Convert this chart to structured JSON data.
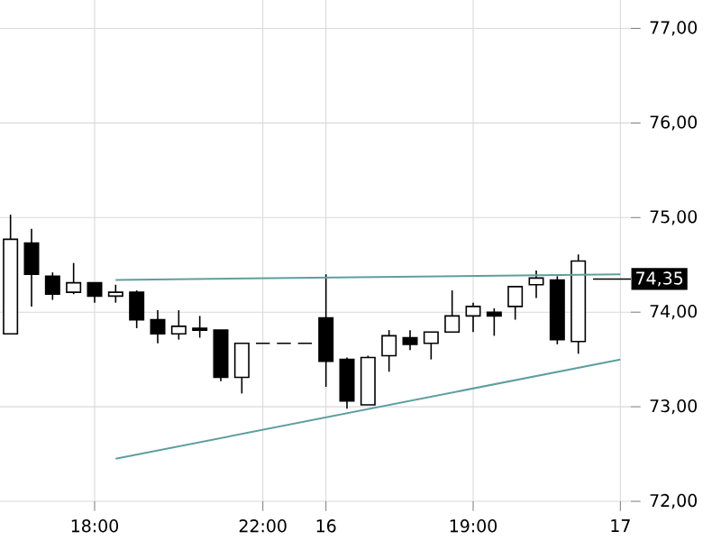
{
  "chart_data": {
    "type": "candlestick",
    "categories": [
      null,
      null,
      null,
      null,
      "18:00",
      null,
      null,
      null,
      null,
      null,
      null,
      null,
      "22:00",
      null,
      null,
      "16",
      null,
      null,
      null,
      null,
      null,
      null,
      "19:00",
      null,
      null,
      null,
      null,
      null,
      null,
      "17"
    ],
    "ohlc": [
      [
        73.77,
        75.03,
        73.77,
        74.77
      ],
      [
        74.73,
        74.88,
        74.06,
        74.4
      ],
      [
        74.38,
        74.42,
        74.13,
        74.19
      ],
      [
        74.21,
        74.52,
        74.19,
        74.31
      ],
      [
        74.31,
        74.31,
        74.1,
        74.17
      ],
      [
        74.17,
        74.29,
        74.1,
        74.21
      ],
      [
        74.21,
        74.23,
        73.83,
        73.92
      ],
      [
        73.92,
        74.02,
        73.67,
        73.77
      ],
      [
        73.77,
        74.02,
        73.71,
        73.85
      ],
      [
        73.83,
        73.96,
        73.73,
        73.81
      ],
      [
        73.81,
        73.81,
        73.27,
        73.31
      ],
      [
        73.31,
        73.67,
        73.14,
        73.67
      ],
      [
        73.67,
        73.67,
        73.67,
        73.67
      ],
      [
        73.67,
        73.67,
        73.67,
        73.67
      ],
      [
        73.67,
        73.67,
        73.67,
        73.67
      ],
      [
        73.94,
        74.4,
        73.21,
        73.48
      ],
      [
        73.5,
        73.52,
        72.98,
        73.06
      ],
      [
        73.02,
        73.54,
        73.02,
        73.52
      ],
      [
        73.54,
        73.81,
        73.37,
        73.75
      ],
      [
        73.73,
        73.81,
        73.6,
        73.66
      ],
      [
        73.67,
        73.79,
        73.5,
        73.79
      ],
      [
        73.79,
        74.23,
        73.79,
        73.96
      ],
      [
        73.96,
        74.1,
        73.79,
        74.06
      ],
      [
        74.0,
        74.04,
        73.75,
        73.96
      ],
      [
        74.06,
        74.27,
        73.92,
        74.27
      ],
      [
        74.29,
        74.44,
        74.15,
        74.36
      ],
      [
        74.34,
        74.38,
        73.66,
        73.71
      ],
      [
        73.69,
        74.61,
        73.56,
        74.54
      ],
      null,
      null
    ],
    "series": [
      {
        "type": "line",
        "color": "#5f9ea0",
        "values": [
          null,
          null,
          null,
          null,
          null,
          74.34,
          null,
          null,
          null,
          null,
          null,
          null,
          null,
          null,
          null,
          null,
          null,
          null,
          null,
          null,
          null,
          null,
          null,
          null,
          null,
          null,
          null,
          null,
          null,
          74.4
        ]
      },
      {
        "type": "line",
        "color": "#5f9ea0",
        "values": [
          null,
          null,
          null,
          null,
          null,
          72.45,
          null,
          null,
          null,
          null,
          null,
          null,
          null,
          null,
          null,
          null,
          null,
          null,
          null,
          null,
          null,
          null,
          null,
          null,
          null,
          null,
          null,
          null,
          null,
          73.5
        ]
      }
    ],
    "ref_lines": [
      {
        "axis": "y",
        "value": 74.35,
        "label": "74,35",
        "color": "#000000"
      }
    ],
    "ylim": [
      72,
      77.3
    ],
    "yticks": [
      {
        "value": 72,
        "label": "72,00"
      },
      {
        "value": 73,
        "label": "73,00"
      },
      {
        "value": 74,
        "label": "74,00"
      },
      {
        "value": 75,
        "label": "75,00"
      },
      {
        "value": 76,
        "label": "76,00"
      },
      {
        "value": 77,
        "label": "77,00"
      }
    ],
    "grid": true
  }
}
